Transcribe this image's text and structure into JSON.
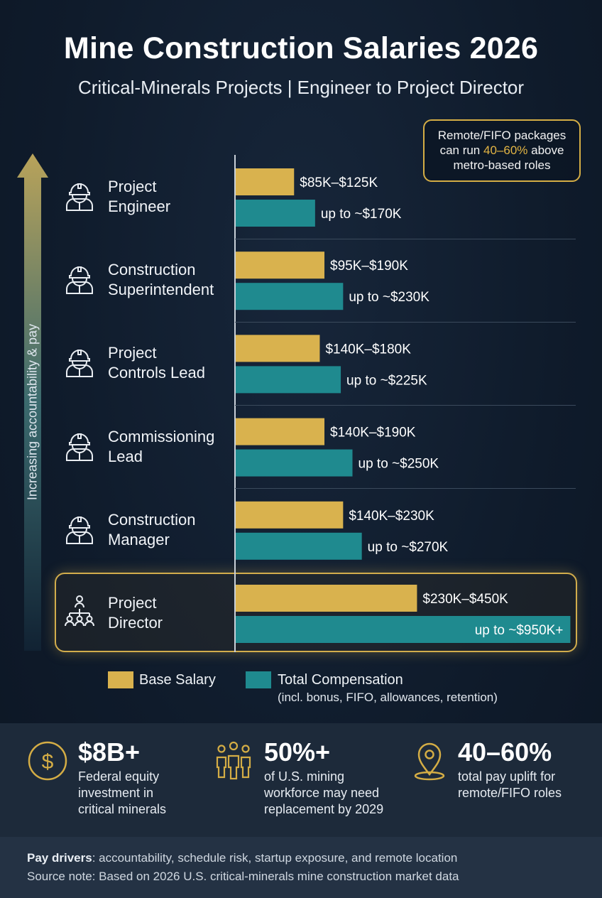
{
  "header": {
    "title": "Mine Construction Salaries 2026",
    "subtitle": "Critical-Minerals Projects | Engineer to Project Director"
  },
  "callout": {
    "line1": "Remote/FIFO packages",
    "line2_pre": "can run ",
    "line2_highlight": "40–60%",
    "line2_post": " above",
    "line3": "metro-based roles"
  },
  "side_label": "Increasing accountability & pay",
  "colors": {
    "base": "#d9b24e",
    "total": "#1f8a8f",
    "accent": "#d4ad45",
    "background": "#0f1b2b"
  },
  "chart_data": {
    "type": "bar",
    "orientation": "horizontal",
    "unit": "USD (thousands)",
    "categories": [
      "Project Engineer",
      "Construction Superintendent",
      "Project Controls Lead",
      "Commissioning Lead",
      "Construction Manager",
      "Project Director"
    ],
    "category_lines": [
      [
        "Project",
        "Engineer"
      ],
      [
        "Construction",
        "Superintendent"
      ],
      [
        "Project",
        "Controls Lead"
      ],
      [
        "Commissioning",
        "Lead"
      ],
      [
        "Construction",
        "Manager"
      ],
      [
        "Project",
        "Director"
      ]
    ],
    "icons": [
      "engineer-icon",
      "superintendent-icon",
      "controls-lead-icon",
      "commissioning-lead-icon",
      "construction-manager-icon",
      "director-team-icon"
    ],
    "series": [
      {
        "name": "Base Salary",
        "low": [
          85,
          95,
          140,
          140,
          140,
          230
        ],
        "high": [
          125,
          190,
          180,
          190,
          230,
          450
        ],
        "labels": [
          "$85K–$125K",
          "$95K–$190K",
          "$140K–$180K",
          "$140K–$190K",
          "$140K–$230K",
          "$230K–$450K"
        ]
      },
      {
        "name": "Total Compensation",
        "high": [
          170,
          230,
          225,
          250,
          270,
          950
        ],
        "labels": [
          "up to ~$170K",
          "up to ~$230K",
          "up to ~$225K",
          "up to ~$250K",
          "up to ~$270K",
          "up to ~$950K+"
        ]
      }
    ],
    "highlighted_category": "Project Director",
    "legend": {
      "base": "Base Salary",
      "total": "Total Compensation",
      "total_note": "(incl. bonus, FIFO, allowances, retention)"
    }
  },
  "stats": [
    {
      "icon": "dollar-coin-icon",
      "value": "$8B+",
      "lines": [
        "Federal equity",
        "investment in",
        "critical minerals"
      ]
    },
    {
      "icon": "workforce-group-icon",
      "value": "50%+",
      "lines": [
        "of U.S. mining",
        "workforce may need",
        "replacement by 2029"
      ]
    },
    {
      "icon": "location-pin-icon",
      "value": "40–60%",
      "lines": [
        "total pay uplift for",
        "remote/FIFO roles"
      ]
    }
  ],
  "footer": {
    "drivers_label": "Pay drivers",
    "drivers_text": ": accountability, schedule risk, startup exposure, and remote location",
    "source": "Source note: Based on 2026 U.S. critical-minerals mine construction market data"
  }
}
